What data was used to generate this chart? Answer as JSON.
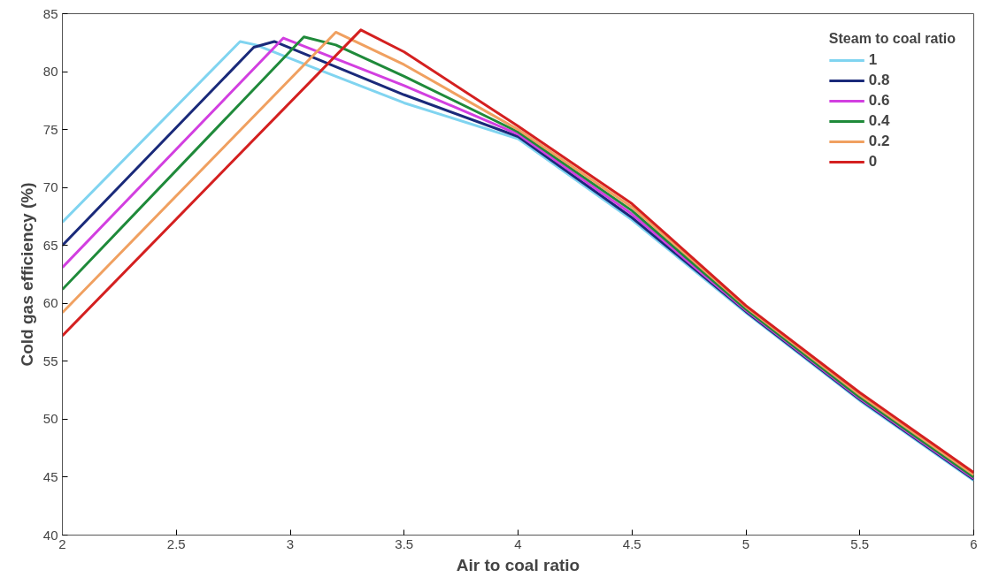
{
  "chart_data": {
    "type": "line",
    "xlabel": "Air to coal ratio",
    "ylabel": "Cold gas efficiency (%)",
    "legend_title": "Steam to coal ratio",
    "xlim": [
      2,
      6
    ],
    "ylim": [
      40,
      85
    ],
    "xticks": [
      2,
      2.5,
      3,
      3.5,
      4,
      4.5,
      5,
      5.5,
      6
    ],
    "yticks": [
      40,
      45,
      50,
      55,
      60,
      65,
      70,
      75,
      80,
      85
    ],
    "grid": false,
    "legend": "top right",
    "line_style": "solid",
    "marker": "none",
    "series": [
      {
        "name": "1",
        "color": "#80d4f0",
        "x": [
          2,
          2.78,
          2.85,
          3.12,
          3.5,
          4,
          4.5,
          5,
          5.5,
          6
        ],
        "values": [
          67.0,
          82.6,
          82.3,
          80.2,
          77.3,
          74.2,
          67.2,
          59.2,
          51.6,
          44.7
        ]
      },
      {
        "name": "0.8",
        "color": "#1a2a7a",
        "x": [
          2,
          2.84,
          2.93,
          3.5,
          4,
          4.5,
          5,
          5.5,
          6
        ],
        "values": [
          65.0,
          82.1,
          82.6,
          78.0,
          74.4,
          67.4,
          59.3,
          51.7,
          44.8
        ]
      },
      {
        "name": "0.6",
        "color": "#d23fe0",
        "x": [
          2,
          2.97,
          3.5,
          4,
          4.5,
          5,
          5.5,
          6
        ],
        "values": [
          63.1,
          82.9,
          78.8,
          74.6,
          67.7,
          59.4,
          51.8,
          44.9
        ]
      },
      {
        "name": "0.4",
        "color": "#1f8a3a",
        "x": [
          2,
          3.06,
          3.2,
          3.5,
          4,
          4.5,
          5,
          5.5,
          6
        ],
        "values": [
          61.2,
          83.0,
          82.3,
          79.6,
          74.8,
          68.0,
          59.5,
          51.9,
          45.0
        ]
      },
      {
        "name": "0.2",
        "color": "#f0a060",
        "x": [
          2,
          3.2,
          3.5,
          4,
          4.5,
          5,
          5.5,
          6
        ],
        "values": [
          59.2,
          83.4,
          80.6,
          75.0,
          68.3,
          59.7,
          52.1,
          45.2
        ]
      },
      {
        "name": "0",
        "color": "#d42020",
        "x": [
          2,
          3.31,
          3.5,
          4,
          4.5,
          5,
          5.5,
          6
        ],
        "values": [
          57.2,
          83.6,
          81.7,
          75.3,
          68.6,
          59.8,
          52.3,
          45.4
        ]
      }
    ]
  }
}
